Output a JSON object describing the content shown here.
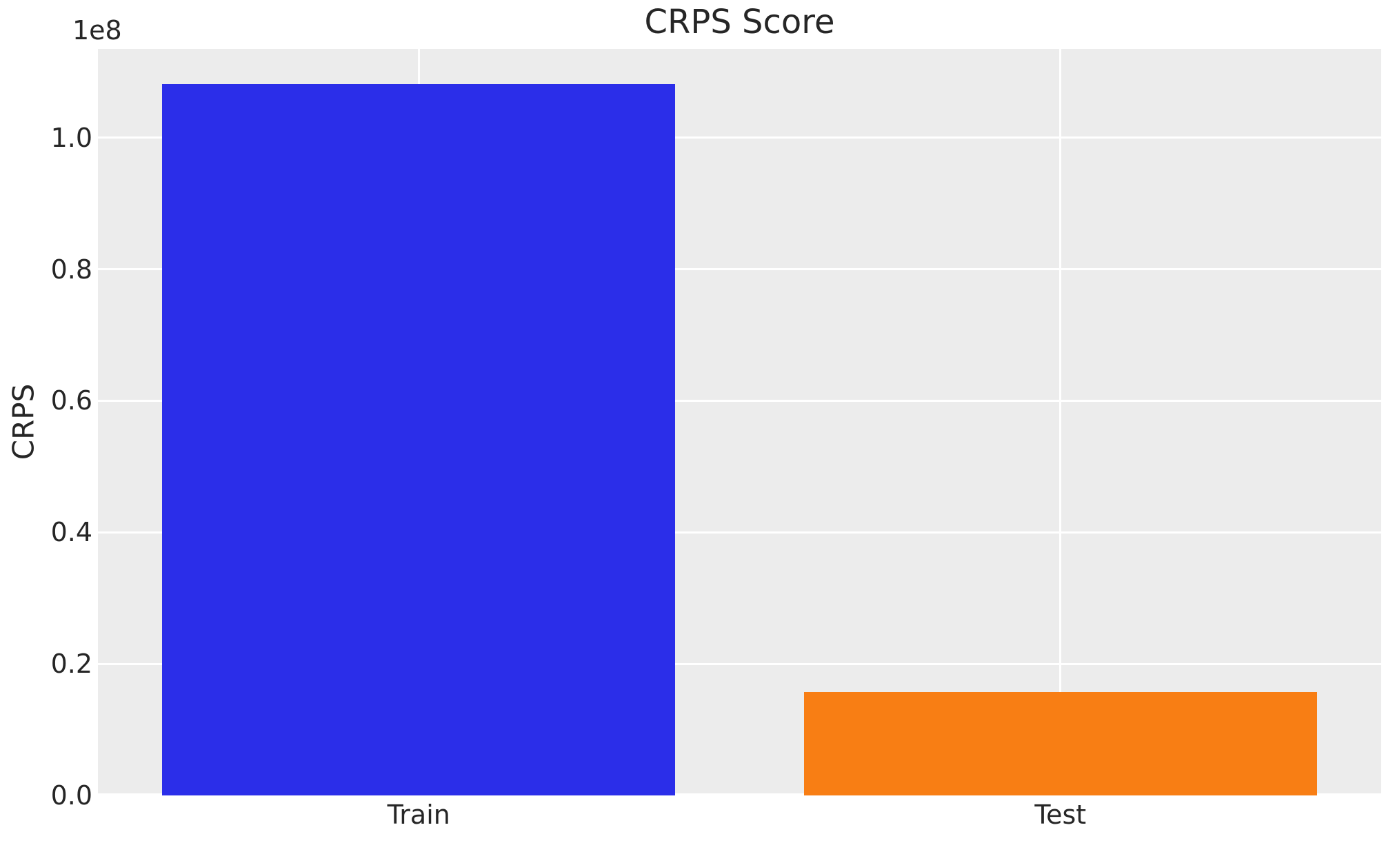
{
  "colors": {
    "figure_bg": "#ffffff",
    "axes_bg": "#ececec",
    "grid": "#ffffff",
    "text": "#262626"
  },
  "chart_data": {
    "type": "bar",
    "title": "CRPS Score",
    "xlabel": "",
    "ylabel": "CRPS",
    "offset_text": "1e8",
    "categories": [
      "Train",
      "Test"
    ],
    "values": [
      108200000,
      15700000
    ],
    "bar_colors": [
      "#2b2ee9",
      "#f87e14"
    ],
    "ylim": [
      0,
      113500000
    ],
    "yticks": [
      {
        "value": 0,
        "label": "0.0"
      },
      {
        "value": 20000000,
        "label": "0.2"
      },
      {
        "value": 40000000,
        "label": "0.4"
      },
      {
        "value": 60000000,
        "label": "0.6"
      },
      {
        "value": 80000000,
        "label": "0.8"
      },
      {
        "value": 100000000,
        "label": "1.0"
      }
    ],
    "grid": true,
    "legend_position": "none",
    "bar_width_fraction": 0.8
  }
}
